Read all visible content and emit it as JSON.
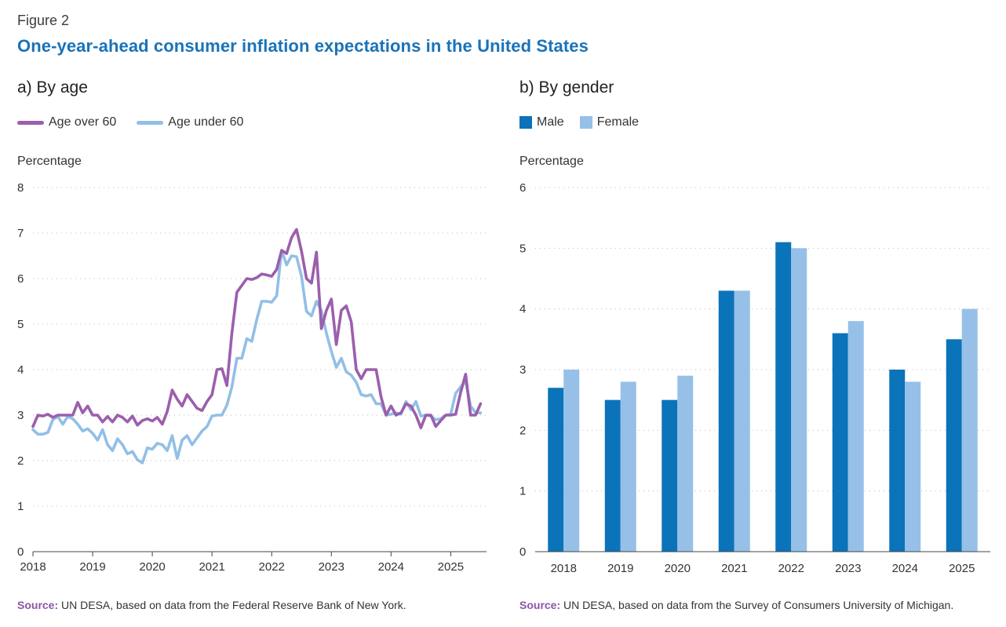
{
  "figure_label": "Figure 2",
  "figure_title": "One-year-ahead consumer inflation expectations in the United States",
  "colors": {
    "title": "#1a73b8",
    "over60": "#9b5fad",
    "under60": "#92bfe6",
    "male": "#0b73b9",
    "female": "#96c0e7",
    "source_label": "#8a56a6"
  },
  "panel_a": {
    "title": "a) By age",
    "legend_over": "Age over 60",
    "legend_under": "Age under 60",
    "ylabel": "Percentage",
    "source_label": "Source:",
    "source_text": "UN DESA, based on data from the Federal Reserve Bank of New York."
  },
  "panel_b": {
    "title": "b) By gender",
    "legend_male": "Male",
    "legend_female": "Female",
    "ylabel": "Percentage",
    "source_label": "Source:",
    "source_text": "UN DESA, based on data from the Survey of Consumers University of Michigan."
  },
  "chart_data": [
    {
      "type": "line",
      "title": "a) By age",
      "ylabel": "Percentage",
      "ylim": [
        0,
        8
      ],
      "yticks": [
        0,
        1,
        2,
        3,
        4,
        5,
        6,
        7,
        8
      ],
      "xlim": [
        2018,
        2025.6
      ],
      "xticks": [
        2018,
        2019,
        2020,
        2021,
        2022,
        2023,
        2024,
        2025
      ],
      "grid": true,
      "series": [
        {
          "name": "Age over 60",
          "x": [
            2018.0,
            2018.083,
            2018.167,
            2018.25,
            2018.333,
            2018.417,
            2018.5,
            2018.583,
            2018.667,
            2018.75,
            2018.833,
            2018.917,
            2019.0,
            2019.083,
            2019.167,
            2019.25,
            2019.333,
            2019.417,
            2019.5,
            2019.583,
            2019.667,
            2019.75,
            2019.833,
            2019.917,
            2020.0,
            2020.083,
            2020.167,
            2020.25,
            2020.333,
            2020.417,
            2020.5,
            2020.583,
            2020.667,
            2020.75,
            2020.833,
            2020.917,
            2021.0,
            2021.083,
            2021.167,
            2021.25,
            2021.333,
            2021.417,
            2021.5,
            2021.583,
            2021.667,
            2021.75,
            2021.833,
            2021.917,
            2022.0,
            2022.083,
            2022.167,
            2022.25,
            2022.333,
            2022.417,
            2022.5,
            2022.583,
            2022.667,
            2022.75,
            2022.833,
            2022.917,
            2023.0,
            2023.083,
            2023.167,
            2023.25,
            2023.333,
            2023.417,
            2023.5,
            2023.583,
            2023.667,
            2023.75,
            2023.833,
            2023.917,
            2024.0,
            2024.083,
            2024.167,
            2024.25,
            2024.333,
            2024.417,
            2024.5,
            2024.583,
            2024.667,
            2024.75,
            2024.833,
            2024.917,
            2025.0,
            2025.083,
            2025.167,
            2025.25,
            2025.333,
            2025.417,
            2025.5
          ],
          "values": [
            2.75,
            3.0,
            2.98,
            3.02,
            2.95,
            3.0,
            3.0,
            3.0,
            3.0,
            3.28,
            3.05,
            3.2,
            3.0,
            3.0,
            2.85,
            2.97,
            2.85,
            3.0,
            2.95,
            2.85,
            2.98,
            2.78,
            2.88,
            2.92,
            2.87,
            2.95,
            2.8,
            3.08,
            3.55,
            3.35,
            3.2,
            3.45,
            3.3,
            3.15,
            3.1,
            3.3,
            3.45,
            4.0,
            4.02,
            3.65,
            4.8,
            5.7,
            5.85,
            6.0,
            5.98,
            6.02,
            6.1,
            6.08,
            6.05,
            6.2,
            6.62,
            6.55,
            6.9,
            7.08,
            6.6,
            6.0,
            5.9,
            6.58,
            4.9,
            5.3,
            5.55,
            4.55,
            5.3,
            5.4,
            5.05,
            4.0,
            3.8,
            4.0,
            4.0,
            4.0,
            3.4,
            3.0,
            3.2,
            3.0,
            3.05,
            3.25,
            3.2,
            3.0,
            2.72,
            3.0,
            3.0,
            2.75,
            2.88,
            3.0,
            3.0,
            3.02,
            3.5,
            3.9,
            3.0,
            3.0,
            3.25
          ]
        },
        {
          "name": "Age under 60",
          "x": [
            2018.0,
            2018.083,
            2018.167,
            2018.25,
            2018.333,
            2018.417,
            2018.5,
            2018.583,
            2018.667,
            2018.75,
            2018.833,
            2018.917,
            2019.0,
            2019.083,
            2019.167,
            2019.25,
            2019.333,
            2019.417,
            2019.5,
            2019.583,
            2019.667,
            2019.75,
            2019.833,
            2019.917,
            2020.0,
            2020.083,
            2020.167,
            2020.25,
            2020.333,
            2020.417,
            2020.5,
            2020.583,
            2020.667,
            2020.75,
            2020.833,
            2020.917,
            2021.0,
            2021.083,
            2021.167,
            2021.25,
            2021.333,
            2021.417,
            2021.5,
            2021.583,
            2021.667,
            2021.75,
            2021.833,
            2021.917,
            2022.0,
            2022.083,
            2022.167,
            2022.25,
            2022.333,
            2022.417,
            2022.5,
            2022.583,
            2022.667,
            2022.75,
            2022.833,
            2022.917,
            2023.0,
            2023.083,
            2023.167,
            2023.25,
            2023.333,
            2023.417,
            2023.5,
            2023.583,
            2023.667,
            2023.75,
            2023.833,
            2023.917,
            2024.0,
            2024.083,
            2024.167,
            2024.25,
            2024.333,
            2024.417,
            2024.5,
            2024.583,
            2024.667,
            2024.75,
            2024.833,
            2024.917,
            2025.0,
            2025.083,
            2025.167,
            2025.25,
            2025.333,
            2025.417,
            2025.5
          ],
          "values": [
            2.68,
            2.58,
            2.58,
            2.62,
            2.9,
            2.97,
            2.8,
            2.97,
            2.92,
            2.8,
            2.65,
            2.7,
            2.6,
            2.45,
            2.68,
            2.35,
            2.22,
            2.48,
            2.35,
            2.15,
            2.2,
            2.02,
            1.95,
            2.28,
            2.25,
            2.38,
            2.35,
            2.22,
            2.55,
            2.05,
            2.45,
            2.55,
            2.35,
            2.5,
            2.65,
            2.75,
            2.98,
            3.0,
            3.0,
            3.22,
            3.62,
            4.25,
            4.25,
            4.68,
            4.62,
            5.1,
            5.5,
            5.5,
            5.48,
            5.62,
            6.62,
            6.3,
            6.5,
            6.48,
            6.05,
            5.28,
            5.18,
            5.5,
            5.3,
            4.8,
            4.4,
            4.05,
            4.25,
            3.95,
            3.88,
            3.72,
            3.45,
            3.42,
            3.45,
            3.25,
            3.25,
            3.0,
            3.02,
            3.05,
            3.02,
            3.3,
            3.12,
            3.3,
            2.98,
            3.0,
            2.98,
            2.9,
            2.92,
            3.0,
            3.02,
            3.48,
            3.62,
            3.75,
            3.2,
            3.05,
            3.05
          ]
        }
      ]
    },
    {
      "type": "bar",
      "title": "b) By gender",
      "ylabel": "Percentage",
      "ylim": [
        0,
        6
      ],
      "yticks": [
        0,
        1,
        2,
        3,
        4,
        5,
        6
      ],
      "grid": true,
      "categories": [
        "2018",
        "2019",
        "2020",
        "2021",
        "2022",
        "2023",
        "2024",
        "2025"
      ],
      "series": [
        {
          "name": "Male",
          "values": [
            2.7,
            2.5,
            2.5,
            4.3,
            5.1,
            3.6,
            3.0,
            3.5
          ]
        },
        {
          "name": "Female",
          "values": [
            3.0,
            2.8,
            2.9,
            4.3,
            5.0,
            3.8,
            2.8,
            4.0
          ]
        }
      ]
    }
  ]
}
